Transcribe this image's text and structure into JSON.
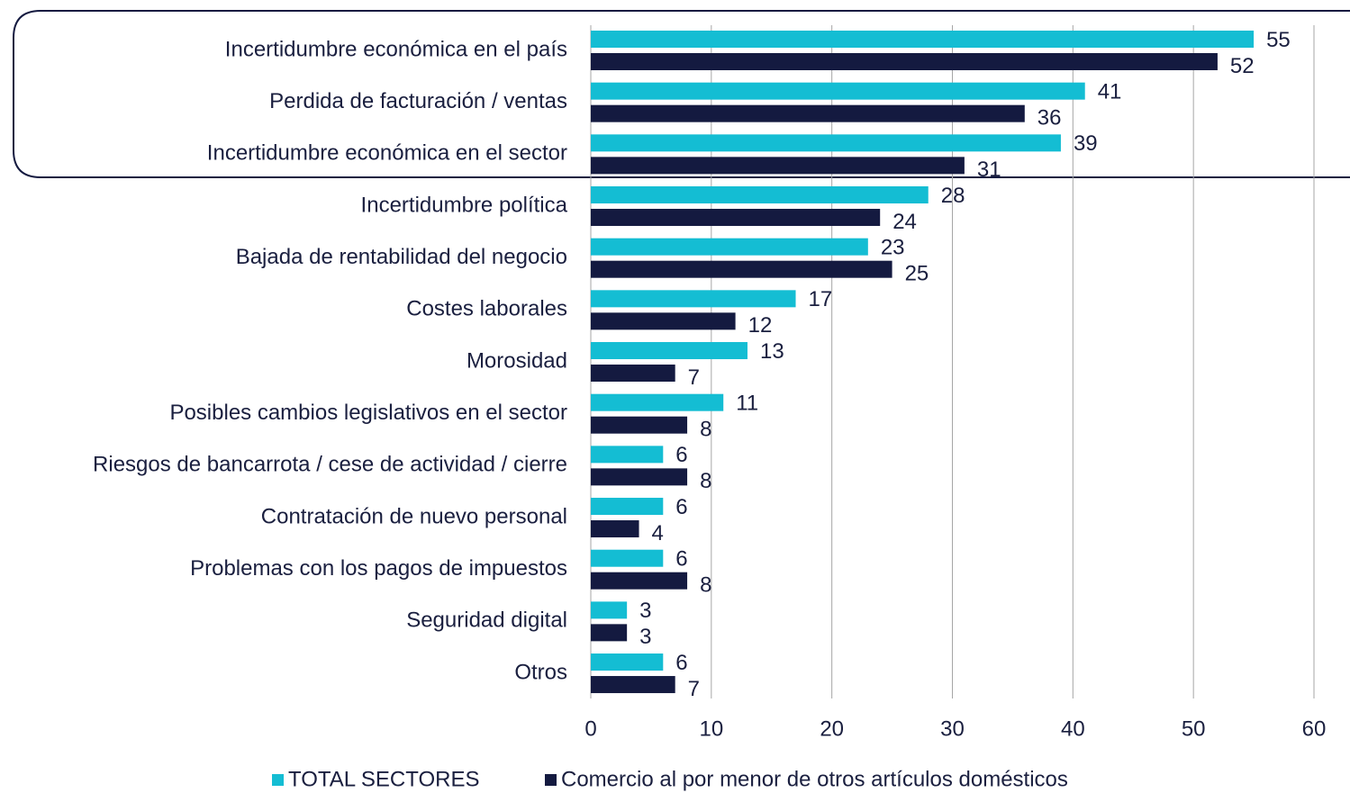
{
  "chart_data": {
    "type": "hbar",
    "categories": [
      "Incertidumbre económica en el país",
      "Perdida de facturación / ventas",
      "Incertidumbre económica en el sector",
      "Incertidumbre política",
      "Bajada de rentabilidad del negocio",
      "Costes laborales",
      "Morosidad",
      "Posibles cambios legislativos en el sector",
      "Riesgos de bancarrota / cese de actividad / cierre",
      "Contratación de nuevo personal",
      "Problemas con los pagos de impuestos",
      "Seguridad digital",
      "Otros"
    ],
    "series": [
      {
        "name": "TOTAL SECTORES",
        "color": "#14bdd3",
        "values": [
          55,
          41,
          39,
          28,
          23,
          17,
          13,
          11,
          6,
          6,
          6,
          3,
          6
        ]
      },
      {
        "name": "Comercio al por menor de otros artículos domésticos",
        "color": "#141a40",
        "values": [
          52,
          36,
          31,
          24,
          25,
          12,
          7,
          8,
          8,
          4,
          8,
          3,
          7
        ]
      }
    ],
    "xlim": [
      0,
      60
    ],
    "xticks": [
      0,
      10,
      20,
      30,
      40,
      50,
      60
    ],
    "grid": true,
    "legend": "bottom"
  }
}
